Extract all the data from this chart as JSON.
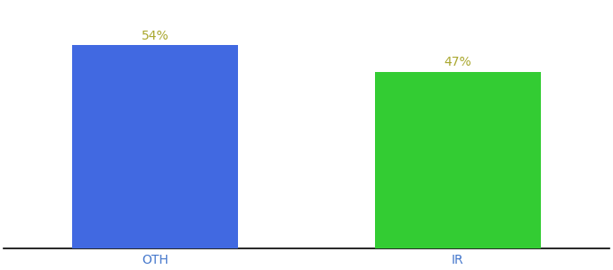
{
  "categories": [
    "OTH",
    "IR"
  ],
  "values": [
    54,
    47
  ],
  "bar_colors": [
    "#4169e1",
    "#33cc33"
  ],
  "label_texts": [
    "54%",
    "47%"
  ],
  "background_color": "#ffffff",
  "bar_width": 0.55,
  "xlim": [
    -0.5,
    1.5
  ],
  "ylim": [
    0,
    65
  ],
  "label_fontsize": 10,
  "tick_fontsize": 10,
  "label_color": "#aaa830",
  "tick_color": "#4477cc"
}
